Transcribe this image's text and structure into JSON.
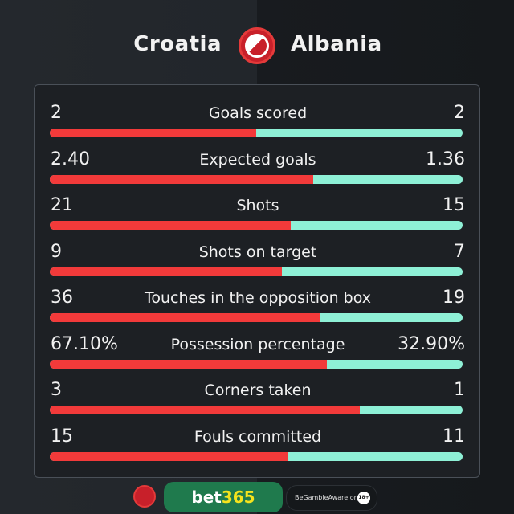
{
  "header": {
    "home": "Croatia",
    "away": "Albania"
  },
  "colors": {
    "home": "#f23a3a",
    "away": "#8ef0d6",
    "background": "#1d2024"
  },
  "stats": [
    {
      "label": "Goals scored",
      "home": "2",
      "away": "2",
      "home_share": 0.5
    },
    {
      "label": "Expected goals",
      "home": "2.40",
      "away": "1.36",
      "home_share": 0.638
    },
    {
      "label": "Shots",
      "home": "21",
      "away": "15",
      "home_share": 0.583
    },
    {
      "label": "Shots on target",
      "home": "9",
      "away": "7",
      "home_share": 0.5625
    },
    {
      "label": "Touches in the opposition box",
      "home": "36",
      "away": "19",
      "home_share": 0.655
    },
    {
      "label": "Possession percentage",
      "home": "67.10%",
      "away": "32.90%",
      "home_share": 0.671
    },
    {
      "label": "Corners taken",
      "home": "3",
      "away": "1",
      "home_share": 0.75
    },
    {
      "label": "Fouls committed",
      "home": "15",
      "away": "11",
      "home_share": 0.577
    }
  ],
  "footer": {
    "sponsor_a": "bet",
    "sponsor_b": "365",
    "gamble": "BeGambleAware.org",
    "age": "18+"
  }
}
